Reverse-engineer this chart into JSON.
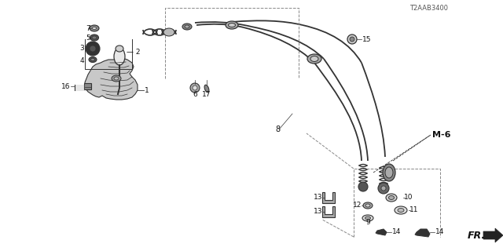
{
  "background_color": "#ffffff",
  "diagram_id": "T2AAB3400",
  "fr_label": "FR.",
  "m6_label": "M-6",
  "line_color": "#333333",
  "text_color": "#111111",
  "dark_color": "#222222",
  "gray_color": "#888888",
  "light_gray": "#cccccc"
}
